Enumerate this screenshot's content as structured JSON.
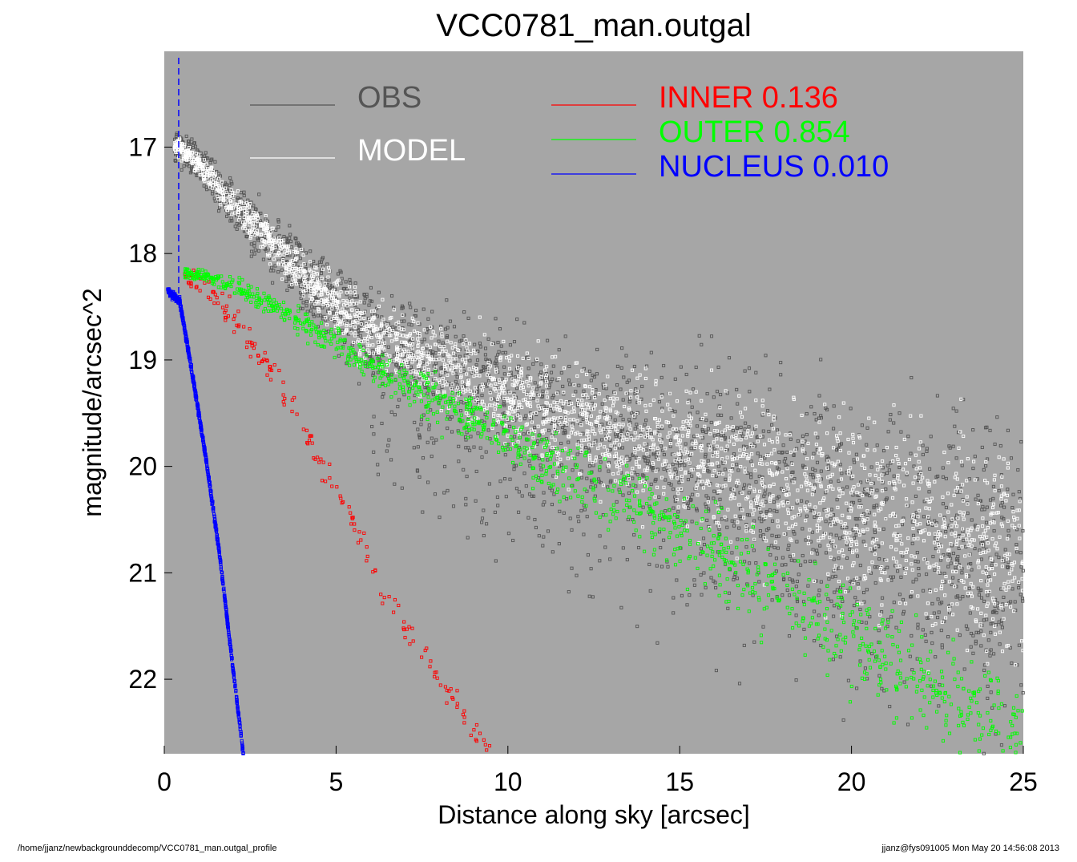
{
  "chart_data": {
    "type": "scatter",
    "title": "VCC0781_man.outgal",
    "xlabel": "Distance along sky [arcsec]",
    "ylabel": "magnitude/arcsec^2",
    "xlim": [
      0,
      25
    ],
    "ylim": [
      22.7,
      16.1
    ],
    "y_inverted": true,
    "x_ticks": [
      0,
      5,
      10,
      15,
      20,
      25
    ],
    "y_ticks": [
      17,
      18,
      19,
      20,
      21,
      22
    ],
    "background": "#a6a6a6",
    "grid": false,
    "nucleus_marker_x": 0.42,
    "legend": [
      {
        "name": "OBS",
        "fraction": "",
        "color": "#555555",
        "text_color": "#555555"
      },
      {
        "name": "MODEL",
        "fraction": "",
        "color": "#ffffff",
        "text_color": "#ffffff"
      },
      {
        "name": "INNER",
        "fraction": "0.136",
        "color": "#ff0000",
        "text_color": "#ff0000"
      },
      {
        "name": "OUTER",
        "fraction": "0.854",
        "color": "#00ff00",
        "text_color": "#00ff00"
      },
      {
        "name": "NUCLEUS",
        "fraction": "0.010",
        "color": "#0000ff",
        "text_color": "#0000ff"
      }
    ],
    "series": [
      {
        "name": "OBS",
        "color": "#555555",
        "x": [
          0.4,
          1,
          2,
          3,
          4,
          5,
          6,
          7,
          8,
          9,
          10,
          12,
          14,
          16,
          18,
          20,
          22,
          25
        ],
        "y": [
          17.0,
          17.15,
          17.55,
          17.85,
          18.2,
          18.5,
          18.75,
          18.9,
          19.05,
          19.2,
          19.35,
          19.6,
          19.8,
          20.0,
          20.2,
          20.4,
          20.6,
          20.95
        ]
      },
      {
        "name": "MODEL",
        "color": "#ffffff",
        "x": [
          0.4,
          1,
          2,
          3,
          4,
          5,
          6,
          7,
          8,
          9,
          10,
          12,
          14,
          16,
          18,
          20,
          22,
          25
        ],
        "y": [
          17.0,
          17.15,
          17.55,
          17.85,
          18.2,
          18.5,
          18.75,
          18.9,
          19.05,
          19.2,
          19.35,
          19.6,
          19.8,
          20.0,
          20.2,
          20.4,
          20.6,
          20.95
        ]
      },
      {
        "name": "INNER",
        "color": "#ff0000",
        "x": [
          0.6,
          1,
          2,
          3,
          4,
          5,
          6,
          7,
          8,
          9,
          9.5
        ],
        "y": [
          18.2,
          18.25,
          18.6,
          19.05,
          19.6,
          20.2,
          20.9,
          21.5,
          22.0,
          22.5,
          22.7
        ]
      },
      {
        "name": "OUTER",
        "color": "#00ff00",
        "x": [
          0.6,
          1,
          2,
          3,
          4,
          5,
          6,
          8,
          10,
          12,
          14,
          16,
          18,
          20,
          22,
          25
        ],
        "y": [
          18.2,
          18.2,
          18.3,
          18.45,
          18.65,
          18.85,
          19.05,
          19.4,
          19.75,
          20.1,
          20.45,
          20.8,
          21.2,
          21.6,
          22.0,
          22.6
        ]
      },
      {
        "name": "NUCLEUS",
        "color": "#0000ff",
        "x": [
          0.1,
          0.45,
          0.8,
          1.2,
          1.6,
          2.0,
          2.3
        ],
        "y": [
          18.35,
          18.45,
          19.1,
          19.9,
          20.8,
          21.9,
          22.7
        ]
      }
    ]
  },
  "footer": {
    "left": "/home/jjanz/newbackgrounddecomp/VCC0781_man.outgal_profile",
    "right": "jjanz@fys091005  Mon May 20 14:56:08 2013"
  }
}
